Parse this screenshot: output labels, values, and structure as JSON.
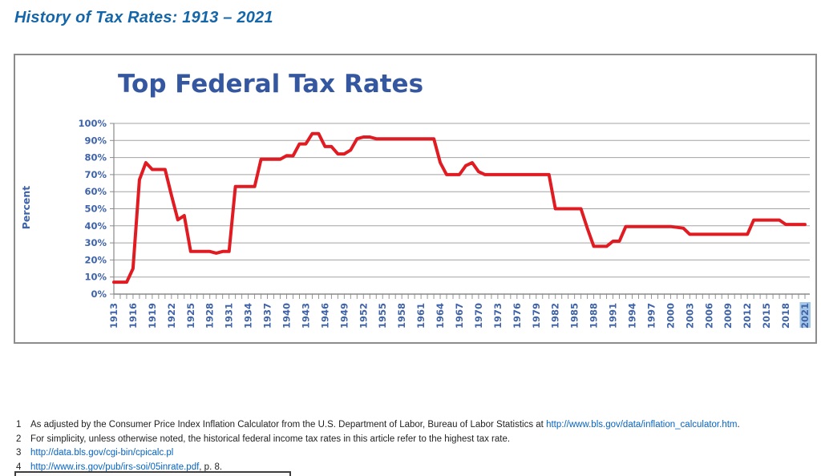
{
  "page": {
    "heading": "History of Tax Rates: 1913 – 2021"
  },
  "colors": {
    "heading_blue": "#1566a9",
    "chart_title_navy": "#3457a0",
    "axis_label_blue": "#3f63a8",
    "line_red": "#e11b22",
    "gridline_gray": "#a3a3a3",
    "axis_gray": "#8a8a8a",
    "link_blue": "#0563c1",
    "xtick_highlight": "#a4c7e7",
    "panel_border_gray": "#8c8c8c"
  },
  "chart_data": {
    "type": "line",
    "title": "Top Federal Tax Rates",
    "xlabel": "",
    "ylabel": "Percent",
    "ylim": [
      0,
      100
    ],
    "ytick_step": 10,
    "ytick_labels": [
      "0%",
      "10%",
      "20%",
      "30%",
      "40%",
      "50%",
      "60%",
      "70%",
      "80%",
      "90%",
      "100%"
    ],
    "x_start": 1913,
    "x_end": 2021,
    "xtick_label_every": 3,
    "xtick_labels": [
      "1913",
      "1916",
      "1919",
      "1922",
      "1925",
      "1928",
      "1931",
      "1934",
      "1937",
      "1940",
      "1943",
      "1946",
      "1949",
      "1952",
      "1955",
      "1958",
      "1961",
      "1964",
      "1967",
      "1970",
      "1973",
      "1976",
      "1979",
      "1982",
      "1985",
      "1988",
      "1991",
      "1994",
      "1997",
      "2000",
      "2003",
      "2006",
      "2009",
      "2012",
      "2015",
      "2018",
      "2021"
    ],
    "highlighted_xtick": "2021",
    "grid": true,
    "legend_position": "none",
    "series": [
      {
        "name": "Top federal tax rate (%)",
        "color": "#e11b22",
        "values": [
          7,
          7,
          7,
          15,
          67,
          77,
          73,
          73,
          73,
          58,
          43.5,
          46,
          25,
          25,
          25,
          25,
          24,
          25,
          25,
          63,
          63,
          63,
          63,
          79,
          79,
          79,
          79,
          81.1,
          81,
          88,
          88,
          94,
          94,
          86.45,
          86.45,
          82.13,
          82.13,
          84.36,
          91,
          92,
          92,
          91,
          91,
          91,
          91,
          91,
          91,
          91,
          91,
          91,
          91,
          77,
          70,
          70,
          70,
          75.25,
          77,
          71.75,
          70,
          70,
          70,
          70,
          70,
          70,
          70,
          70,
          70,
          70,
          70,
          50,
          50,
          50,
          50,
          50,
          38.5,
          28,
          28,
          28,
          31,
          31,
          39.6,
          39.6,
          39.6,
          39.6,
          39.6,
          39.6,
          39.6,
          39.6,
          39.1,
          38.6,
          35,
          35,
          35,
          35,
          35,
          35,
          35,
          35,
          35,
          35,
          43.4,
          43.4,
          43.4,
          43.4,
          43.4,
          40.8,
          40.8,
          40.8,
          40.8
        ]
      }
    ]
  },
  "footnotes": [
    {
      "num": "1",
      "segments": [
        {
          "text": "As adjusted by the Consumer Price Index Inflation Calculator from the U.S. Department of Labor, Bureau of Labor Statistics at ",
          "link": false
        },
        {
          "text": "http://www.bls.gov/data/inflation_calculator.htm",
          "link": true
        },
        {
          "text": ".",
          "link": false
        }
      ]
    },
    {
      "num": "2",
      "segments": [
        {
          "text": "For simplicity, unless otherwise noted, the historical federal income tax rates in this article refer to the highest tax rate.",
          "link": false
        }
      ]
    },
    {
      "num": "3",
      "segments": [
        {
          "text": "http://data.bls.gov/cgi-bin/cpicalc.pl",
          "link": true
        }
      ]
    },
    {
      "num": "4",
      "segments": [
        {
          "text": "http://www.irs.gov/pub/irs-soi/05inrate.pdf",
          "link": true
        },
        {
          "text": ", p. 8.",
          "link": false
        }
      ]
    }
  ]
}
